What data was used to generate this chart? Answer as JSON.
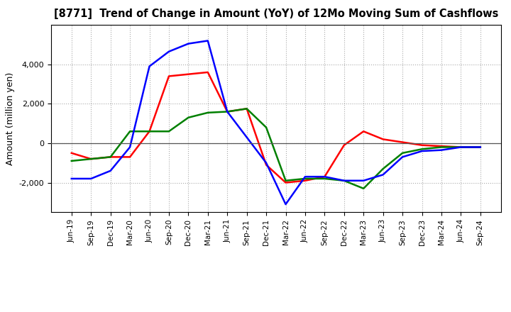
{
  "title": "[8771]  Trend of Change in Amount (YoY) of 12Mo Moving Sum of Cashflows",
  "ylabel": "Amount (million yen)",
  "x_labels": [
    "Jun-19",
    "Sep-19",
    "Dec-19",
    "Mar-20",
    "Jun-20",
    "Sep-20",
    "Dec-20",
    "Mar-21",
    "Jun-21",
    "Sep-21",
    "Dec-21",
    "Mar-22",
    "Jun-22",
    "Sep-22",
    "Dec-22",
    "Mar-23",
    "Jun-23",
    "Sep-23",
    "Dec-23",
    "Mar-24",
    "Jun-24",
    "Sep-24"
  ],
  "operating": [
    -500,
    -800,
    -700,
    -700,
    600,
    3400,
    3500,
    3600,
    1600,
    1750,
    -1100,
    -2000,
    -1900,
    -1700,
    -100,
    600,
    200,
    50,
    -100,
    -150,
    -200,
    -200
  ],
  "investing": [
    -900,
    -800,
    -700,
    600,
    600,
    600,
    1300,
    1550,
    1600,
    1750,
    800,
    -1900,
    -1800,
    -1800,
    -1900,
    -2300,
    -1300,
    -500,
    -300,
    -200,
    -200,
    -200
  ],
  "free": [
    -1800,
    -1800,
    -1400,
    -200,
    3900,
    4650,
    5050,
    5200,
    1600,
    300,
    -1000,
    -3100,
    -1700,
    -1700,
    -1900,
    -1900,
    -1600,
    -700,
    -400,
    -350,
    -200,
    -200
  ],
  "operating_color": "#FF0000",
  "investing_color": "#008000",
  "free_color": "#0000FF",
  "ylim": [
    -3500,
    6000
  ],
  "yticks": [
    -2000,
    0,
    2000,
    4000
  ],
  "background_color": "#FFFFFF",
  "grid_color": "#AAAAAA"
}
